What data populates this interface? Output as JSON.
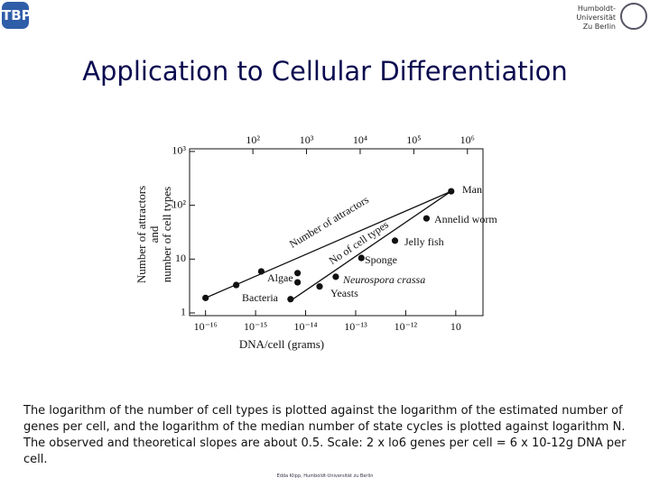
{
  "logo": "TBP",
  "affiliation": [
    "Humboldt-",
    "Universität",
    "Zu Berlin"
  ],
  "title": "Application to Cellular Differentiation",
  "caption": "The logarithm of the number of cell types is plotted against the logarithm of the estimated number of genes per cell, and the logarithm of the median number of state cycles is plotted against logarithm N. The observed and theoretical slopes are about 0.5. Scale: 2 x lo6 genes per cell = 6 x 10-12g DNA per cell.",
  "footer": "Edda Klipp, Humboldt-Universität zu Berlin",
  "chart_data": {
    "type": "scatter",
    "x_label": "DNA/cell (grams)",
    "y_label": [
      "Number of attractors",
      "and",
      "number of cell types"
    ],
    "log_x": true,
    "log_y": true,
    "xlim": [
      4.8e-17,
      3.5e-11
    ],
    "xticks": [
      {
        "value": 1e-16,
        "label": "10⁻¹⁶"
      },
      {
        "value": 1e-15,
        "label": "10⁻¹⁵"
      },
      {
        "value": 1e-14,
        "label": "10⁻¹⁴"
      },
      {
        "value": 1e-13,
        "label": "10⁻¹³"
      },
      {
        "value": 1e-12,
        "label": "10⁻¹²"
      },
      {
        "value": 1e-11,
        "label": "10"
      }
    ],
    "x2lim": [
      6.6,
      1950000
    ],
    "x2ticks": [
      {
        "value": 100,
        "label": "10²"
      },
      {
        "value": 1000,
        "label": "10³"
      },
      {
        "value": 10000,
        "label": "10⁴"
      },
      {
        "value": 100000,
        "label": "10⁵"
      },
      {
        "value": 1000000,
        "label": "10⁶"
      }
    ],
    "ylim": [
      0.89,
      1120
    ],
    "yticks": [
      1,
      10,
      {
        "value": 100,
        "label": "10²"
      },
      {
        "value": 1000,
        "label": "10³"
      }
    ],
    "color": "#111111",
    "series": [
      {
        "x": [
          1e-16,
          4.1e-16,
          1.3e-15,
          6.9e-15,
          6.9e-15,
          5e-15,
          1.9e-14,
          4e-14,
          1.3e-13,
          6.1e-13,
          2.6e-12,
          8.1e-12
        ],
        "values": [
          1.9,
          3.3,
          5.9,
          5.5,
          3.7,
          1.8,
          3.1,
          4.7,
          10.5,
          22,
          57,
          182
        ]
      }
    ],
    "lines": [
      {
        "x": [
          1e-16,
          8.1e-12
        ],
        "values": [
          1.9,
          182
        ]
      },
      {
        "x": [
          4.6e-15,
          8.1e-12
        ],
        "values": [
          1.6,
          182
        ]
      }
    ],
    "annotations": [
      "Man",
      "Annelid worm",
      "Jelly fish",
      "Sponge",
      "Neurospora crassa",
      "Yeasts",
      "Algae",
      "Bacteria",
      "Number of attractors",
      "No of cell types"
    ]
  }
}
